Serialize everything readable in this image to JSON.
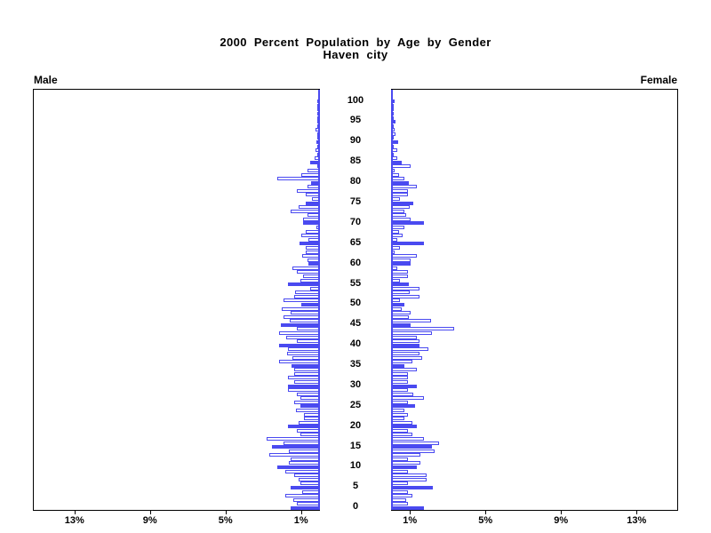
{
  "title": {
    "line1": "2000 Percent Population by Age by Gender",
    "line2": "Haven city"
  },
  "panel_labels": {
    "male": "Male",
    "female": "Female"
  },
  "colors": {
    "bar_blue": "#4a4af0",
    "open_bar_fill": "#ffffff",
    "axis_black": "#000000"
  },
  "chart_data": {
    "type": "bar",
    "variant": "population-pyramid",
    "title": "2000 Percent Population by Age by Gender",
    "subtitle": "Haven city",
    "x_axis": {
      "unit": "percent",
      "max": 15.15,
      "left_tick_values": [
        13,
        9,
        5,
        1
      ],
      "left_tick_labels": [
        "13%",
        "9%",
        "5%",
        "1%"
      ],
      "right_tick_values": [
        1,
        5,
        9,
        13
      ],
      "right_tick_labels": [
        "1%",
        "5%",
        "9%",
        "13%"
      ]
    },
    "y_axis": {
      "label": "age",
      "age_min": 0,
      "age_max": 100,
      "tick_interval": 5,
      "tick_labels": [
        "0",
        "5",
        "10",
        "15",
        "20",
        "25",
        "30",
        "35",
        "40",
        "45",
        "50",
        "55",
        "60",
        "65",
        "70",
        "75",
        "80",
        "85",
        "90",
        "95",
        "100"
      ]
    },
    "bar_fill_rule": "ages divisible by 5 are solid blue; other ages are hollow with blue outline",
    "series": [
      {
        "name": "Male",
        "side": "left",
        "values": [
          1.5,
          1.2,
          1.35,
          1.8,
          0.9,
          1.5,
          1.0,
          1.1,
          1.33,
          1.8,
          2.2,
          1.6,
          1.5,
          2.65,
          1.6,
          2.5,
          1.86,
          2.8,
          1.0,
          1.16,
          1.66,
          1.08,
          0.8,
          0.8,
          1.24,
          1.0,
          1.3,
          1.0,
          1.2,
          1.63,
          1.65,
          1.3,
          1.65,
          1.3,
          1.3,
          1.45,
          2.1,
          1.4,
          1.7,
          1.65,
          2.1,
          1.18,
          1.73,
          2.1,
          1.18,
          2.04,
          1.57,
          1.88,
          1.5,
          1.96,
          0.94,
          1.88,
          1.33,
          1.25,
          0.47,
          1.65,
          1.0,
          0.86,
          1.2,
          1.4,
          0.55,
          0.63,
          0.9,
          0.7,
          0.7,
          1.05,
          0.55,
          0.94,
          0.7,
          0.16,
          0.83,
          0.86,
          0.6,
          1.5,
          1.1,
          0.7,
          0.39,
          0.7,
          1.18,
          0.63,
          0.42,
          2.2,
          0.94,
          0.63,
          0.1,
          0.47,
          0.24,
          0.1,
          0.2,
          0.05,
          0.15,
          0.05,
          0.1,
          0.2,
          0.05,
          0.1,
          0.05,
          0.03,
          0.02,
          0.02,
          0.05
        ]
      },
      {
        "name": "Female",
        "side": "right",
        "values": [
          1.7,
          0.83,
          0.75,
          1.07,
          0.83,
          2.16,
          0.83,
          1.85,
          1.85,
          0.83,
          1.3,
          1.5,
          0.83,
          1.5,
          2.24,
          2.13,
          2.5,
          1.7,
          1.07,
          0.83,
          1.3,
          1.07,
          0.67,
          0.83,
          0.67,
          1.22,
          0.83,
          1.7,
          1.14,
          0.83,
          1.3,
          0.83,
          0.83,
          0.83,
          1.3,
          0.67,
          1.07,
          1.6,
          1.46,
          1.93,
          1.46,
          1.46,
          1.3,
          2.13,
          3.3,
          1.0,
          2.08,
          0.9,
          1.0,
          0.52,
          0.67,
          0.44,
          1.46,
          0.94,
          1.46,
          0.88,
          0.44,
          0.83,
          0.83,
          0.28,
          1.0,
          1.0,
          1.3,
          0.13,
          0.4,
          1.7,
          0.3,
          0.56,
          0.36,
          0.67,
          1.7,
          1.0,
          0.75,
          0.67,
          0.94,
          1.14,
          0.44,
          0.83,
          0.83,
          1.3,
          0.88,
          0.67,
          0.36,
          0.16,
          1.0,
          0.52,
          0.28,
          0.1,
          0.28,
          0.05,
          0.33,
          0.1,
          0.2,
          0.13,
          0.05,
          0.2,
          0.05,
          0.03,
          0.05,
          0.02,
          0.15
        ]
      }
    ]
  }
}
